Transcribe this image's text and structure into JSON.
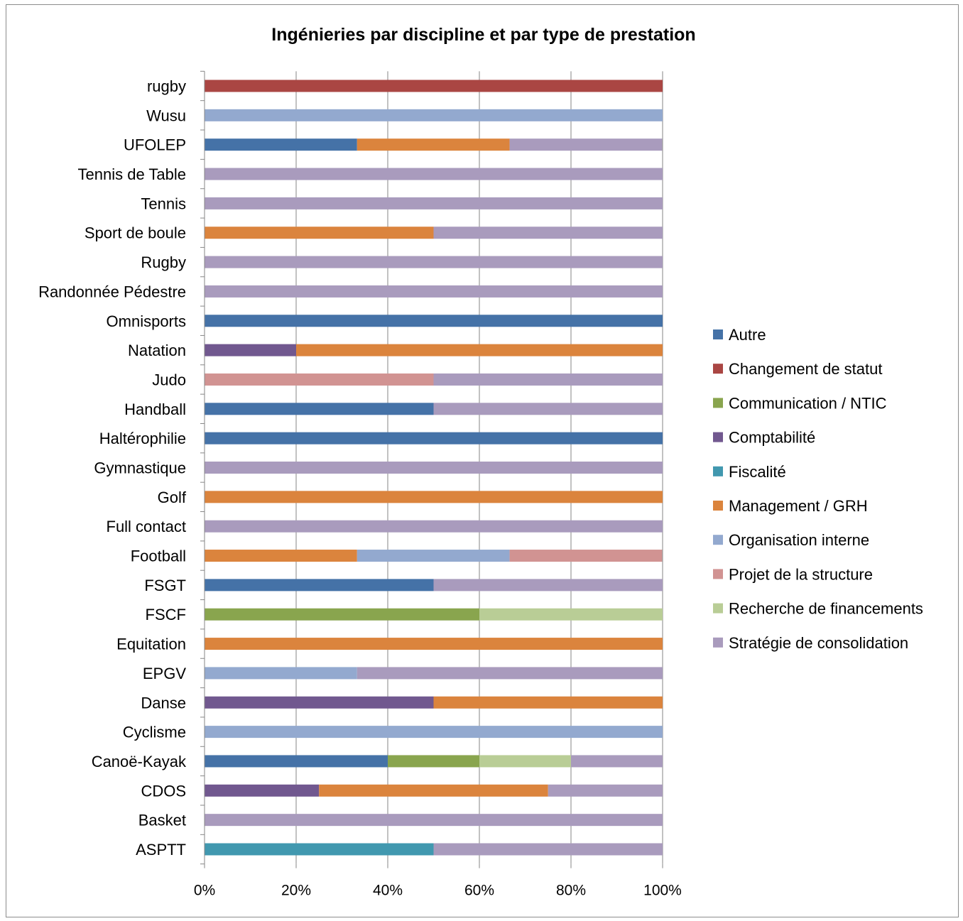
{
  "chart_data": {
    "type": "bar",
    "orientation": "horizontal",
    "stacked": "percent",
    "title": "Ingénieries par discipline et par type de prestation",
    "xlabel": "",
    "ylabel": "",
    "xlim": [
      0,
      100
    ],
    "x_ticks": [
      "0%",
      "20%",
      "40%",
      "60%",
      "80%",
      "100%"
    ],
    "grid": "vertical",
    "legend_position": "right",
    "categories": [
      "rugby",
      "Wusu",
      "UFOLEP",
      "Tennis de Table",
      "Tennis",
      "Sport de boule",
      "Rugby",
      "Randonnée Pédestre",
      "Omnisports",
      "Natation",
      "Judo",
      "Handball",
      "Haltérophilie",
      "Gymnastique",
      "Golf",
      "Full contact",
      "Football",
      "FSGT",
      "FSCF",
      "Equitation",
      "EPGV",
      "Danse",
      "Cyclisme",
      "Canoë-Kayak",
      "CDOS",
      "Basket",
      "ASPTT"
    ],
    "series": [
      {
        "name": "Autre",
        "color": "#4572A7",
        "values": [
          0,
          0,
          33.3,
          0,
          0,
          0,
          0,
          0,
          100,
          0,
          0,
          50,
          100,
          0,
          0,
          0,
          0,
          50,
          0,
          0,
          0,
          0,
          0,
          40,
          0,
          0,
          0
        ]
      },
      {
        "name": "Changement de statut",
        "color": "#AA4643",
        "values": [
          100,
          0,
          0,
          0,
          0,
          0,
          0,
          0,
          0,
          0,
          0,
          0,
          0,
          0,
          0,
          0,
          0,
          0,
          0,
          0,
          0,
          0,
          0,
          0,
          0,
          0,
          0
        ]
      },
      {
        "name": "Communication / NTIC",
        "color": "#89A54E",
        "values": [
          0,
          0,
          0,
          0,
          0,
          0,
          0,
          0,
          0,
          0,
          0,
          0,
          0,
          0,
          0,
          0,
          0,
          0,
          60,
          0,
          0,
          0,
          0,
          20,
          0,
          0,
          0
        ]
      },
      {
        "name": "Comptabilité",
        "color": "#71588F",
        "values": [
          0,
          0,
          0,
          0,
          0,
          0,
          0,
          0,
          0,
          20,
          0,
          0,
          0,
          0,
          0,
          0,
          0,
          0,
          0,
          0,
          0,
          50,
          0,
          0,
          25,
          0,
          0
        ]
      },
      {
        "name": "Fiscalité",
        "color": "#4198AF",
        "values": [
          0,
          0,
          0,
          0,
          0,
          0,
          0,
          0,
          0,
          0,
          0,
          0,
          0,
          0,
          0,
          0,
          0,
          0,
          0,
          0,
          0,
          0,
          0,
          0,
          0,
          0,
          50
        ]
      },
      {
        "name": "Management / GRH",
        "color": "#DB843D",
        "values": [
          0,
          0,
          33.3,
          0,
          0,
          50,
          0,
          0,
          0,
          80,
          0,
          0,
          0,
          0,
          100,
          0,
          33.3,
          0,
          0,
          100,
          0,
          50,
          0,
          0,
          50,
          0,
          0
        ]
      },
      {
        "name": "Organisation interne",
        "color": "#93A9CF",
        "values": [
          0,
          100,
          0,
          0,
          0,
          0,
          0,
          0,
          0,
          0,
          0,
          0,
          0,
          0,
          0,
          0,
          33.3,
          0,
          0,
          0,
          33.3,
          0,
          100,
          0,
          0,
          0,
          0
        ]
      },
      {
        "name": "Projet de la structure",
        "color": "#D19392",
        "values": [
          0,
          0,
          0,
          0,
          0,
          0,
          0,
          0,
          0,
          0,
          50,
          0,
          0,
          0,
          0,
          0,
          33.3,
          0,
          0,
          0,
          0,
          0,
          0,
          0,
          0,
          0,
          0
        ]
      },
      {
        "name": "Recherche de financements",
        "color": "#B9CD96",
        "values": [
          0,
          0,
          0,
          0,
          0,
          0,
          0,
          0,
          0,
          0,
          0,
          0,
          0,
          0,
          0,
          0,
          0,
          0,
          40,
          0,
          0,
          0,
          0,
          20,
          0,
          0,
          0
        ]
      },
      {
        "name": "Stratégie de consolidation",
        "color": "#A99BBD",
        "values": [
          0,
          0,
          33.3,
          100,
          100,
          50,
          100,
          100,
          0,
          0,
          50,
          50,
          0,
          100,
          0,
          100,
          0,
          50,
          0,
          0,
          66.7,
          0,
          0,
          20,
          25,
          100,
          50
        ]
      }
    ]
  }
}
